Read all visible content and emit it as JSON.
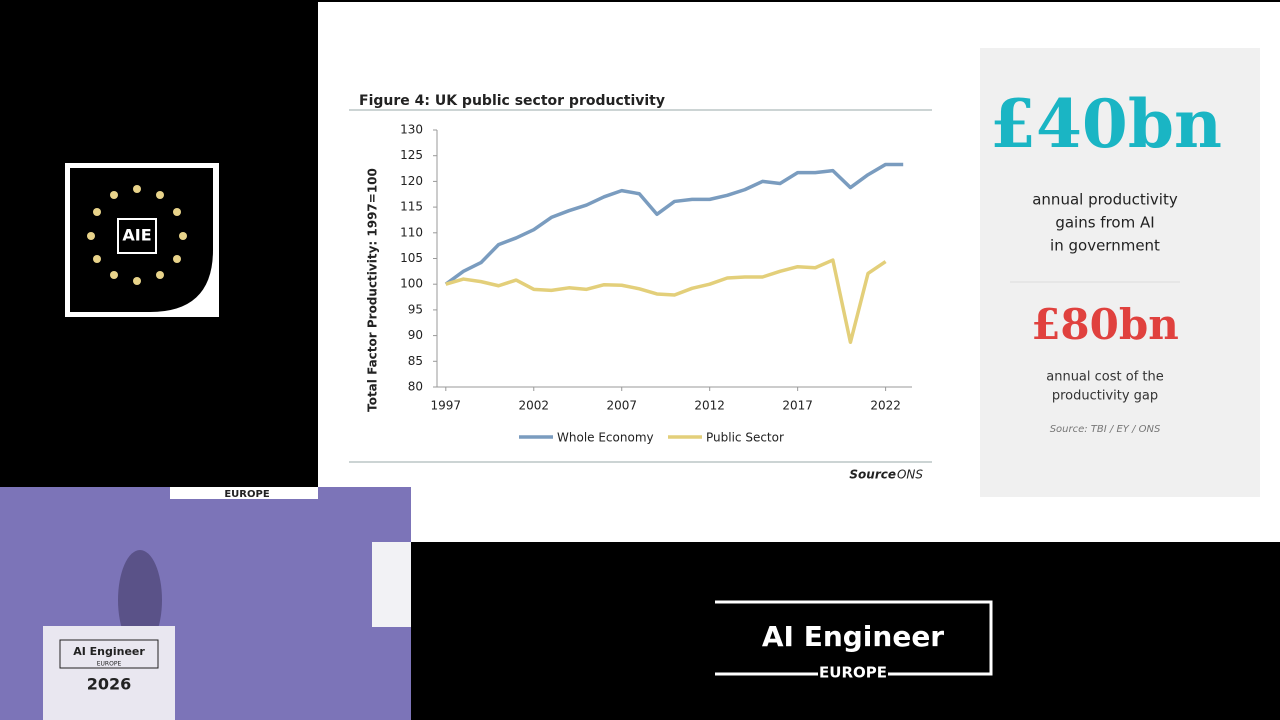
{
  "chart_data": {
    "type": "line",
    "title": "Figure 4: UK public sector productivity",
    "y_label": "Total Factor Productivity: 1997=100",
    "x": [
      1997,
      1998,
      1999,
      2000,
      2001,
      2002,
      2003,
      2004,
      2005,
      2006,
      2007,
      2008,
      2009,
      2010,
      2011,
      2012,
      2013,
      2014,
      2015,
      2016,
      2017,
      2018,
      2019,
      2020,
      2021,
      2022,
      2023
    ],
    "series": [
      {
        "name": "Whole Economy",
        "color": "#7a9cbf",
        "values": [
          100,
          102.5,
          104.2,
          107.7,
          109,
          110.6,
          113,
          114.3,
          115.4,
          117,
          118.2,
          117.6,
          113.6,
          116.1,
          116.5,
          116.5,
          117.3,
          118.4,
          120,
          119.6,
          121.7,
          121.7,
          122.1,
          118.8,
          121.3,
          123.3,
          123.3
        ]
      },
      {
        "name": "Public Sector",
        "color": "#e3cf7a",
        "values": [
          100,
          101,
          100.5,
          99.7,
          100.8,
          99,
          98.8,
          99.3,
          99,
          99.9,
          99.8,
          99.1,
          98.1,
          97.9,
          99.2,
          100,
          101.2,
          101.4,
          101.4,
          102.5,
          103.4,
          103.2,
          104.7,
          88.7,
          102.1,
          104.4,
          null
        ]
      }
    ],
    "xlim": [
      1996.5,
      2023.5
    ],
    "xticks": [
      1997,
      2002,
      2007,
      2012,
      2017,
      2022
    ],
    "ylim": [
      80,
      130
    ],
    "yticks": [
      80,
      85,
      90,
      95,
      100,
      105,
      110,
      115,
      120,
      125,
      130
    ],
    "grid": false,
    "legend": "bottom",
    "source_label": "Source",
    "source": "ONS"
  },
  "panel": {
    "stat1": "£40bn",
    "stat1_text": [
      "annual productivity",
      "gains from AI",
      "in government"
    ],
    "stat2": "£80bn",
    "stat2_text": [
      "annual cost of the",
      "productivity gap"
    ],
    "source": "Source: TBI / EY / ONS"
  },
  "logo": {
    "badge": "AIE",
    "name": "AI Engineer",
    "region": "EUROPE"
  },
  "video": {
    "banner": "EUROPE",
    "podium": "AI Engineer",
    "podium_sub": "EUROPE",
    "podium_year": "2026"
  }
}
